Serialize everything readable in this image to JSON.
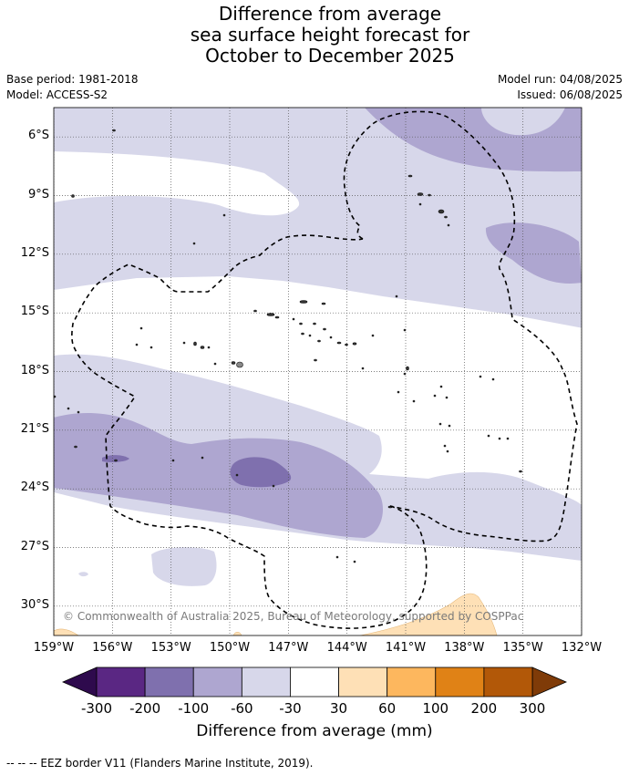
{
  "title": {
    "line1": "Difference from average",
    "line2": "sea surface height forecast for",
    "line3": "October to December 2025"
  },
  "meta": {
    "base_period": "Base period: 1981-2018",
    "model": "Model: ACCESS-S2",
    "model_run": "Model run: 04/08/2025",
    "issued": "Issued: 06/08/2025"
  },
  "map": {
    "lat_labels": [
      "6°S",
      "9°S",
      "12°S",
      "15°S",
      "18°S",
      "21°S",
      "24°S",
      "27°S",
      "30°S"
    ],
    "lon_labels": [
      "159°W",
      "156°W",
      "153°W",
      "150°W",
      "147°W",
      "144°W",
      "141°W",
      "138°W",
      "135°W",
      "132°W"
    ],
    "lon_range": [
      -159,
      -132
    ],
    "lat_range": [
      -4.5,
      -31.5
    ],
    "copyright": "© Commonwealth of Australia 2025, Bureau of Meteorology, supported by COSPPac"
  },
  "colorbar": {
    "title": "Difference from average (mm)",
    "ticks": [
      "-300",
      "-200",
      "-100",
      "-60",
      "-30",
      "30",
      "60",
      "100",
      "200",
      "300"
    ],
    "colors": [
      "#5a2783",
      "#7f70ae",
      "#aea6d0",
      "#d7d7ea",
      "#ffffff",
      "#fee0b6",
      "#fdb75e",
      "#e08216",
      "#b25808"
    ],
    "low_color": "#2e0a4d",
    "high_color": "#7f3b08"
  },
  "footer": "--  --  -- EEZ border V11 (Flanders Marine Institute, 2019)."
}
